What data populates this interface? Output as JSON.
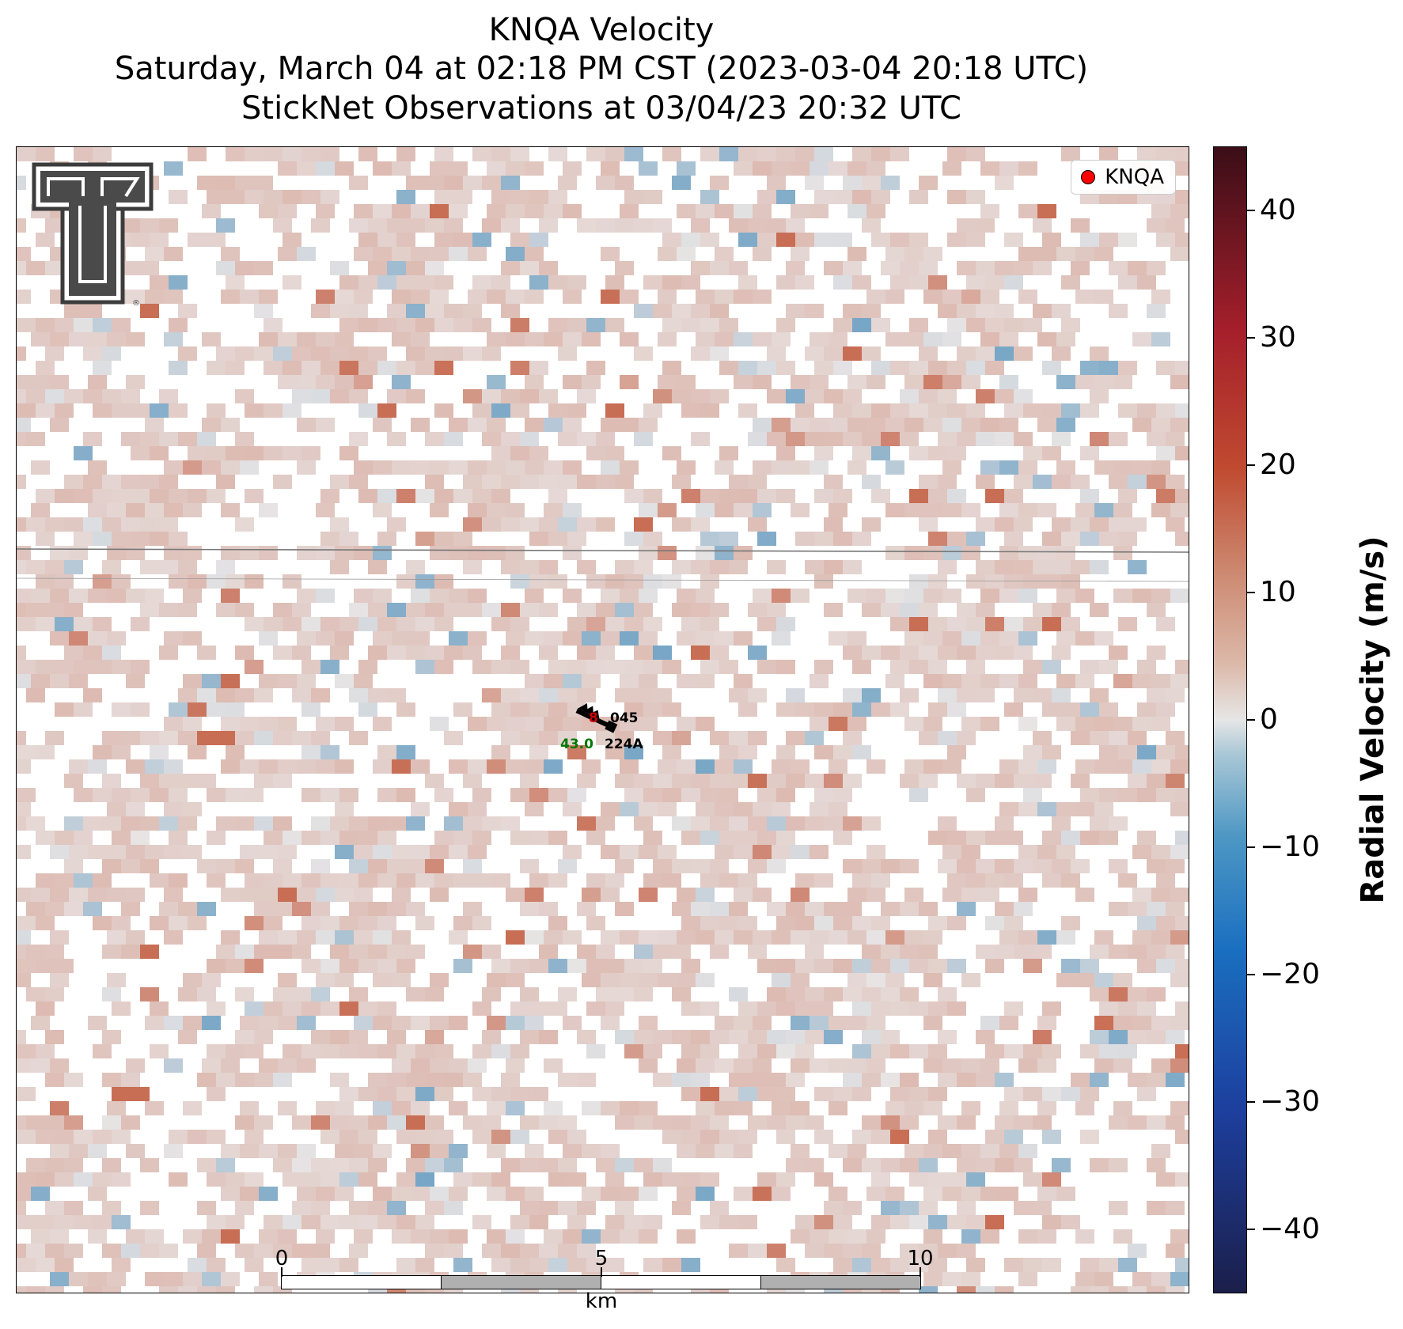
{
  "title": {
    "line1": "KNQA Velocity",
    "line2": "Saturday, March 04 at 02:18 PM CST (2023-03-04 20:18 UTC)",
    "line3": "StickNet Observations at 03/04/23 20:32 UTC"
  },
  "legend": {
    "label": "KNQA",
    "marker_color": "#ff0000"
  },
  "colorbar": {
    "label": "Radial Velocity (m/s)",
    "range": [
      -45,
      45
    ],
    "ticks": [
      "40",
      "30",
      "20",
      "10",
      "0",
      "−10",
      "−20",
      "−30",
      "−40"
    ],
    "tick_values": [
      40,
      30,
      20,
      10,
      0,
      -10,
      -20,
      -30,
      -40
    ]
  },
  "scalebar": {
    "labels": [
      "0",
      "5",
      "10"
    ],
    "unit": "km"
  },
  "station": {
    "temperature": "8",
    "wind_direction": "045",
    "dewpoint": "43.0",
    "id": "224A"
  },
  "logo": {
    "name": "texas-tech-double-t-logo",
    "color": "#4a4a4a"
  },
  "colors": {
    "positive": "#a51f2b",
    "negative": "#2a7bb8",
    "zero": "#e6e6e6",
    "temp": "#cc0000",
    "dew": "#007700"
  }
}
